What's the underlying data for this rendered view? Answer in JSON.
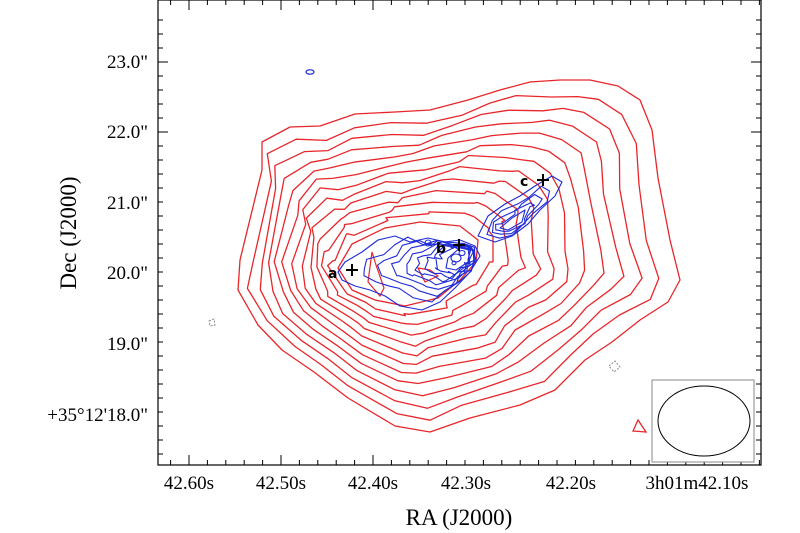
{
  "figure": {
    "x_axis": {
      "title": "RA (J2000)",
      "ticks": [
        "42.60s",
        "42.50s",
        "42.40s",
        "42.30s",
        "42.20s",
        "3h01m42.10s"
      ]
    },
    "y_axis": {
      "title": "Dec (J2000)",
      "ticks": [
        "23.0\"",
        "22.0\"",
        "21.0\"",
        "20.0\"",
        "19.0\"",
        "+35°12'18.0\""
      ]
    },
    "markers": [
      {
        "label": "a"
      },
      {
        "label": "b"
      },
      {
        "label": "c"
      }
    ],
    "colors": {
      "red_contours": "#e8262a",
      "blue_contours": "#1f2bd6",
      "negative_contours": "#8a8a8a",
      "frame": "#000000"
    }
  }
}
